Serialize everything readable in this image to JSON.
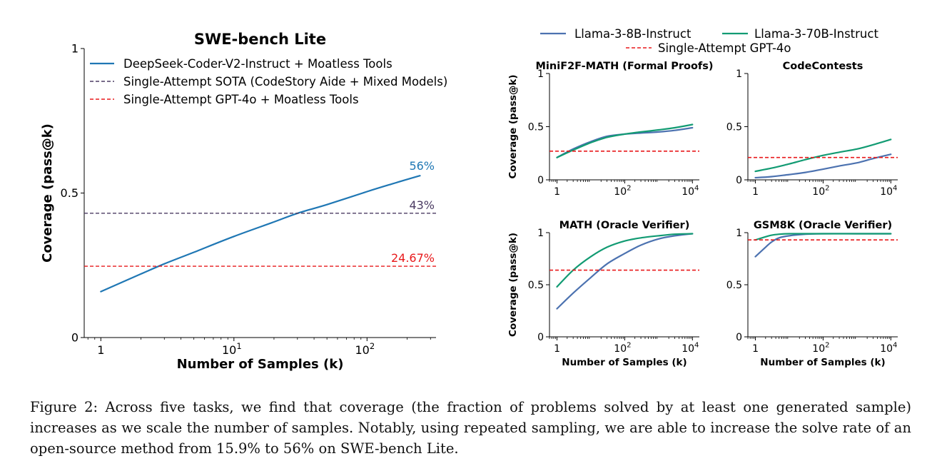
{
  "caption": "Figure 2: Across five tasks, we find that coverage (the fraction of problems solved by at least one generated sample) increases as we scale the number of samples. Notably, using repeated sampling, we are able to increase the solve rate of an open-source method from 15.9% to 56% on SWE-bench Lite.",
  "colors": {
    "blue": "#1f77b4",
    "purple": "#4b3b63",
    "red": "#e8191b",
    "llama8": "#4c72b0",
    "llama70": "#129b73"
  },
  "legend_right": {
    "items": [
      {
        "label": "Llama-3-8B-Instruct",
        "color": "#4c72b0",
        "dash": false
      },
      {
        "label": "Llama-3-70B-Instruct",
        "color": "#129b73",
        "dash": false
      },
      {
        "label": "Single-Attempt GPT-4o",
        "color": "#e8191b",
        "dash": true
      }
    ]
  },
  "chart_data": [
    {
      "type": "line",
      "title": "SWE-bench Lite",
      "xlabel": "Number of Samples (k)",
      "ylabel": "Coverage (pass@k)",
      "xscale": "log",
      "xlim": [
        0.75,
        330
      ],
      "ylim": [
        0,
        1
      ],
      "xticks": [
        {
          "v": 1,
          "label": "1",
          "base": "",
          "exp": ""
        },
        {
          "v": 10,
          "label": "",
          "base": "10",
          "exp": "1"
        },
        {
          "v": 100,
          "label": "",
          "base": "10",
          "exp": "2"
        }
      ],
      "yticks": [
        {
          "v": 0,
          "label": "0"
        },
        {
          "v": 0.5,
          "label": "0.5"
        },
        {
          "v": 1,
          "label": "1"
        }
      ],
      "legend": "top",
      "series": [
        {
          "name": "DeepSeek-Coder-V2-Instruct + Moatless Tools",
          "color": "#1f77b4",
          "dash": false,
          "width": 2.2,
          "x": [
            1,
            2,
            3,
            5,
            10,
            20,
            30,
            50,
            100,
            150,
            250
          ],
          "y": [
            0.159,
            0.22,
            0.255,
            0.295,
            0.35,
            0.4,
            0.43,
            0.46,
            0.505,
            0.53,
            0.56
          ],
          "end_label": "56%"
        },
        {
          "name": "Single-Attempt SOTA (CodeStory Aide + Mixed Models)",
          "color": "#4b3b63",
          "dash": true,
          "width": 1.4,
          "hline": 0.43,
          "end_label": "43%"
        },
        {
          "name": "Single-Attempt GPT-4o + Moatless Tools",
          "color": "#e8191b",
          "dash": true,
          "width": 1.4,
          "hline": 0.2467,
          "end_label": "24.67%"
        }
      ]
    },
    {
      "type": "line",
      "title": "MiniF2F-MATH (Formal Proofs)",
      "xlabel": "",
      "ylabel": "Coverage (pass@k)",
      "xscale": "log",
      "xlim": [
        0.6,
        16000
      ],
      "ylim": [
        0,
        1
      ],
      "xticks": [
        {
          "v": 1,
          "label": "1",
          "base": "",
          "exp": ""
        },
        {
          "v": 100,
          "label": "",
          "base": "10",
          "exp": "2"
        },
        {
          "v": 10000,
          "label": "",
          "base": "10",
          "exp": "4"
        }
      ],
      "yticks": [
        {
          "v": 0,
          "label": "0"
        },
        {
          "v": 0.5,
          "label": "0.5"
        },
        {
          "v": 1,
          "label": "1"
        }
      ],
      "series": [
        {
          "name": "Llama-3-8B-Instruct",
          "color": "#4c72b0",
          "x": [
            1,
            3,
            10,
            30,
            100,
            300,
            1000,
            3000,
            10000
          ],
          "y": [
            0.21,
            0.29,
            0.36,
            0.41,
            0.43,
            0.44,
            0.45,
            0.465,
            0.49
          ]
        },
        {
          "name": "Llama-3-70B-Instruct",
          "color": "#129b73",
          "x": [
            1,
            3,
            10,
            30,
            100,
            300,
            1000,
            3000,
            10000
          ],
          "y": [
            0.21,
            0.28,
            0.35,
            0.4,
            0.43,
            0.45,
            0.47,
            0.49,
            0.52
          ]
        },
        {
          "name": "Single-Attempt GPT-4o",
          "color": "#e8191b",
          "dash": true,
          "hline": 0.27
        }
      ]
    },
    {
      "type": "line",
      "title": "CodeContests",
      "xlabel": "",
      "ylabel": "",
      "xscale": "log",
      "xlim": [
        0.6,
        16000
      ],
      "ylim": [
        0,
        1
      ],
      "xticks": [
        {
          "v": 1,
          "label": "1",
          "base": "",
          "exp": ""
        },
        {
          "v": 100,
          "label": "",
          "base": "10",
          "exp": "2"
        },
        {
          "v": 10000,
          "label": "",
          "base": "10",
          "exp": "4"
        }
      ],
      "yticks": [
        {
          "v": 0,
          "label": "0"
        },
        {
          "v": 0.5,
          "label": "0.5"
        },
        {
          "v": 1,
          "label": "1"
        }
      ],
      "series": [
        {
          "name": "Llama-3-8B-Instruct",
          "color": "#4c72b0",
          "x": [
            1,
            3,
            10,
            30,
            100,
            300,
            1000,
            3000,
            10000
          ],
          "y": [
            0.02,
            0.03,
            0.05,
            0.07,
            0.1,
            0.13,
            0.16,
            0.2,
            0.24
          ]
        },
        {
          "name": "Llama-3-70B-Instruct",
          "color": "#129b73",
          "x": [
            1,
            3,
            10,
            30,
            100,
            300,
            1000,
            3000,
            10000
          ],
          "y": [
            0.08,
            0.11,
            0.15,
            0.19,
            0.23,
            0.26,
            0.29,
            0.33,
            0.38
          ]
        },
        {
          "name": "Single-Attempt GPT-4o",
          "color": "#e8191b",
          "dash": true,
          "hline": 0.21
        }
      ]
    },
    {
      "type": "line",
      "title": "MATH (Oracle Verifier)",
      "xlabel": "Number of Samples (k)",
      "ylabel": "Coverage (pass@k)",
      "xscale": "log",
      "xlim": [
        0.6,
        16000
      ],
      "ylim": [
        0,
        1
      ],
      "xticks": [
        {
          "v": 1,
          "label": "1",
          "base": "",
          "exp": ""
        },
        {
          "v": 100,
          "label": "",
          "base": "10",
          "exp": "2"
        },
        {
          "v": 10000,
          "label": "",
          "base": "10",
          "exp": "4"
        }
      ],
      "yticks": [
        {
          "v": 0,
          "label": "0"
        },
        {
          "v": 0.5,
          "label": "0.5"
        },
        {
          "v": 1,
          "label": "1"
        }
      ],
      "series": [
        {
          "name": "Llama-3-8B-Instruct",
          "color": "#4c72b0",
          "x": [
            1,
            3,
            10,
            30,
            100,
            300,
            1000,
            3000,
            10000
          ],
          "y": [
            0.27,
            0.42,
            0.57,
            0.7,
            0.8,
            0.88,
            0.94,
            0.97,
            0.99
          ]
        },
        {
          "name": "Llama-3-70B-Instruct",
          "color": "#129b73",
          "x": [
            1,
            3,
            10,
            30,
            100,
            300,
            1000,
            3000,
            10000
          ],
          "y": [
            0.48,
            0.64,
            0.77,
            0.86,
            0.92,
            0.95,
            0.97,
            0.985,
            0.99
          ]
        },
        {
          "name": "Single-Attempt GPT-4o",
          "color": "#e8191b",
          "dash": true,
          "hline": 0.64
        }
      ]
    },
    {
      "type": "line",
      "title": "GSM8K (Oracle Verifier)",
      "xlabel": "Number of Samples (k)",
      "ylabel": "",
      "xscale": "log",
      "xlim": [
        0.6,
        16000
      ],
      "ylim": [
        0,
        1
      ],
      "xticks": [
        {
          "v": 1,
          "label": "1",
          "base": "",
          "exp": ""
        },
        {
          "v": 100,
          "label": "",
          "base": "10",
          "exp": "2"
        },
        {
          "v": 10000,
          "label": "",
          "base": "10",
          "exp": "4"
        }
      ],
      "yticks": [
        {
          "v": 0,
          "label": "0"
        },
        {
          "v": 0.5,
          "label": "0.5"
        },
        {
          "v": 1,
          "label": "1"
        }
      ],
      "series": [
        {
          "name": "Llama-3-8B-Instruct",
          "color": "#4c72b0",
          "x": [
            1,
            2,
            3,
            5,
            10,
            30,
            100,
            1000,
            10000
          ],
          "y": [
            0.77,
            0.86,
            0.91,
            0.95,
            0.97,
            0.985,
            0.99,
            0.99,
            0.99
          ]
        },
        {
          "name": "Llama-3-70B-Instruct",
          "color": "#129b73",
          "x": [
            1,
            2,
            3,
            5,
            10,
            30,
            100,
            1000,
            10000
          ],
          "y": [
            0.93,
            0.96,
            0.975,
            0.985,
            0.99,
            0.99,
            0.99,
            0.99,
            0.99
          ]
        },
        {
          "name": "Single-Attempt GPT-4o",
          "color": "#e8191b",
          "dash": true,
          "hline": 0.93
        }
      ]
    }
  ]
}
